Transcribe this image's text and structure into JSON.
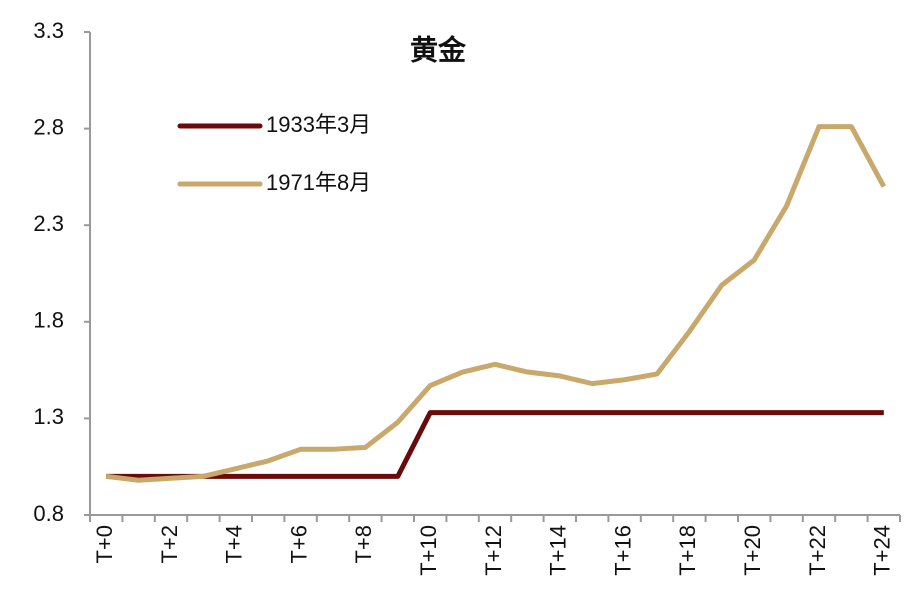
{
  "chart_data": {
    "type": "line",
    "title": "黄金",
    "categories": [
      "T+0",
      null,
      "T+2",
      null,
      "T+4",
      null,
      "T+6",
      null,
      "T+8",
      null,
      "T+10",
      null,
      "T+12",
      null,
      "T+14",
      null,
      "T+16",
      null,
      "T+18",
      null,
      "T+20",
      null,
      "T+22",
      null,
      "T+24"
    ],
    "series": [
      {
        "name": "1933年3月",
        "color": "#6b0a0a",
        "values": [
          1.0,
          1.0,
          1.0,
          1.0,
          1.0,
          1.0,
          1.0,
          1.0,
          1.0,
          1.0,
          1.33,
          1.33,
          1.33,
          1.33,
          1.33,
          1.33,
          1.33,
          1.33,
          1.33,
          1.33,
          1.33,
          1.33,
          1.33,
          1.33,
          1.33
        ]
      },
      {
        "name": "1971年8月",
        "color": "#c9a96b",
        "values": [
          1.0,
          0.98,
          0.99,
          1.0,
          1.04,
          1.08,
          1.14,
          1.14,
          1.15,
          1.28,
          1.47,
          1.54,
          1.58,
          1.54,
          1.52,
          1.48,
          1.5,
          1.53,
          1.75,
          1.99,
          2.12,
          2.4,
          2.81,
          2.81,
          2.5
        ]
      }
    ],
    "ylim": [
      0.8,
      3.3
    ],
    "yticks": [
      0.8,
      1.3,
      1.8,
      2.3,
      2.8,
      3.3
    ],
    "grid": false,
    "legend": "top-left"
  }
}
